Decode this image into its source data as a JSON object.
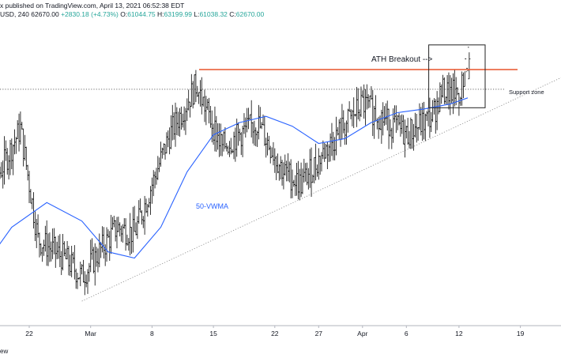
{
  "header": {
    "published_line": "x published on TradingView.com, April 13, 2021 06:52:38 EDT",
    "symbol": "USD, 240",
    "price": "62670.00",
    "change": "+2830.18 (+4.73%)",
    "ohlc": {
      "o_label": "O:",
      "o": "61044.75",
      "h_label": "H:",
      "h": "63199.99",
      "l_label": "L:",
      "l": "61038.32",
      "c_label": "C:",
      "c": "62670.00"
    }
  },
  "footer": {
    "text": "ew"
  },
  "colors": {
    "bars": "#1e1e1e",
    "vwma": "#2962ff",
    "resistance": "#e8532b",
    "support": "#555555",
    "trendline": "#888888",
    "annotation_box": "#222222"
  },
  "chart_data": {
    "type": "bar",
    "subtype": "ohlc",
    "x_ticks": [
      "22",
      "Mar",
      "8",
      "15",
      "22",
      "27",
      "Apr",
      "6",
      "12",
      "19"
    ],
    "ohlc_approx": [
      {
        "date": "2021-02-17",
        "open": 48500,
        "high": 52000,
        "low": 47000,
        "close": 51000
      },
      {
        "date": "2021-02-21",
        "open": 55000,
        "high": 58300,
        "low": 53000,
        "close": 57000
      },
      {
        "date": "2021-02-23",
        "open": 54000,
        "high": 54500,
        "low": 45000,
        "close": 48000
      },
      {
        "date": "2021-02-26",
        "open": 47500,
        "high": 48500,
        "low": 44500,
        "close": 46500
      },
      {
        "date": "2021-02-28",
        "open": 46000,
        "high": 46500,
        "low": 43000,
        "close": 45000
      },
      {
        "date": "2021-03-04",
        "open": 51000,
        "high": 52500,
        "low": 48500,
        "close": 49000
      },
      {
        "date": "2021-03-06",
        "open": 48500,
        "high": 49500,
        "low": 46500,
        "close": 48500
      },
      {
        "date": "2021-03-10",
        "open": 55000,
        "high": 57500,
        "low": 54000,
        "close": 56500
      },
      {
        "date": "2021-03-13",
        "open": 58500,
        "high": 61800,
        "low": 57500,
        "close": 60500
      },
      {
        "date": "2021-03-16",
        "open": 56000,
        "high": 56500,
        "low": 53500,
        "close": 55500
      },
      {
        "date": "2021-03-20",
        "open": 58500,
        "high": 59500,
        "low": 56500,
        "close": 57500
      },
      {
        "date": "2021-03-23",
        "open": 55000,
        "high": 55500,
        "low": 52500,
        "close": 53500
      },
      {
        "date": "2021-03-25",
        "open": 52000,
        "high": 53000,
        "low": 50500,
        "close": 52500
      },
      {
        "date": "2021-03-28",
        "open": 56000,
        "high": 56500,
        "low": 55000,
        "close": 55500
      },
      {
        "date": "2021-04-01",
        "open": 58500,
        "high": 59500,
        "low": 58000,
        "close": 59000
      },
      {
        "date": "2021-04-06",
        "open": 57500,
        "high": 58500,
        "low": 55500,
        "close": 56500
      },
      {
        "date": "2021-04-09",
        "open": 58000,
        "high": 58500,
        "low": 57500,
        "close": 58000
      },
      {
        "date": "2021-04-10",
        "open": 59500,
        "high": 61000,
        "low": 59000,
        "close": 60000
      },
      {
        "date": "2021-04-12",
        "open": 60000,
        "high": 61000,
        "low": 59500,
        "close": 59800
      },
      {
        "date": "2021-04-13",
        "open": 61044.75,
        "high": 63199.99,
        "low": 61038.32,
        "close": 62670.0
      }
    ],
    "series": [
      {
        "name": "50-VWMA",
        "points": [
          {
            "date": "2021-02-16",
            "value": 45000
          },
          {
            "date": "2021-02-20",
            "value": 49000
          },
          {
            "date": "2021-02-24",
            "value": 51000
          },
          {
            "date": "2021-02-28",
            "value": 49500
          },
          {
            "date": "2021-03-03",
            "value": 47000
          },
          {
            "date": "2021-03-06",
            "value": 46500
          },
          {
            "date": "2021-03-09",
            "value": 49000
          },
          {
            "date": "2021-03-12",
            "value": 53500
          },
          {
            "date": "2021-03-15",
            "value": 56500
          },
          {
            "date": "2021-03-18",
            "value": 57500
          },
          {
            "date": "2021-03-21",
            "value": 58000
          },
          {
            "date": "2021-03-24",
            "value": 57200
          },
          {
            "date": "2021-03-27",
            "value": 55800
          },
          {
            "date": "2021-03-30",
            "value": 56200
          },
          {
            "date": "2021-04-02",
            "value": 57500
          },
          {
            "date": "2021-04-05",
            "value": 58300
          },
          {
            "date": "2021-04-08",
            "value": 58600
          },
          {
            "date": "2021-04-11",
            "value": 59000
          },
          {
            "date": "2021-04-13",
            "value": 59500
          }
        ]
      }
    ],
    "annotations": [
      {
        "text": "ATH Breakout -->"
      },
      {
        "text": "Support zone"
      },
      {
        "text": "50-VWMA"
      }
    ],
    "levels": {
      "resistance": 61800,
      "support": 60200,
      "trendline_from": {
        "date": "2021-02-28",
        "value": 43000
      },
      "trendline_to": {
        "date": "2021-04-19",
        "value": 59600
      }
    },
    "breakout_box": {
      "date_from": "2021-04-09",
      "date_to": "2021-04-13",
      "value_low": 58700,
      "value_high": 63800
    },
    "grid": false,
    "legend": "none"
  }
}
